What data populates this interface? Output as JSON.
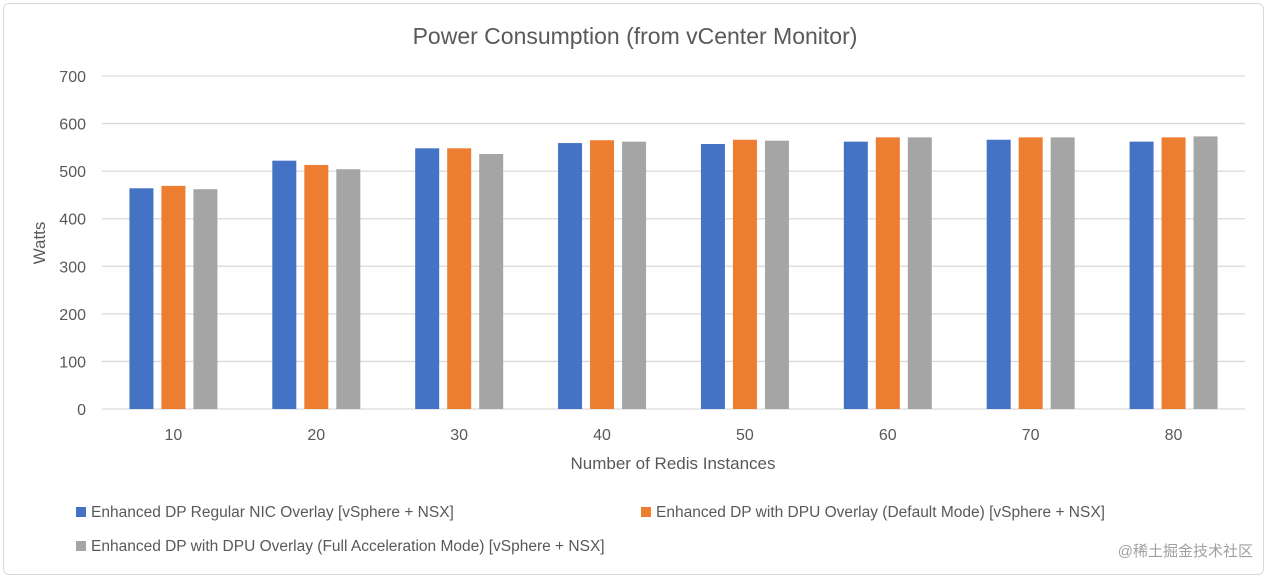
{
  "chart_data": {
    "type": "bar",
    "title": "Power Consumption (from vCenter Monitor)",
    "xlabel": "Number of Redis Instances",
    "ylabel": "Watts",
    "ylim": [
      0,
      700
    ],
    "yticks": [
      0,
      100,
      200,
      300,
      400,
      500,
      600,
      700
    ],
    "grid": true,
    "legend_position": "bottom",
    "categories": [
      "10",
      "20",
      "30",
      "40",
      "50",
      "60",
      "70",
      "80"
    ],
    "series": [
      {
        "name": "Enhanced DP Regular NIC Overlay [vSphere + NSX]",
        "color": "#4472c4",
        "values": [
          464,
          522,
          548,
          559,
          557,
          562,
          566,
          562
        ]
      },
      {
        "name": "Enhanced DP with DPU Overlay (Default Mode) [vSphere + NSX]",
        "color": "#ed7d31",
        "values": [
          469,
          513,
          548,
          565,
          566,
          571,
          571,
          571
        ]
      },
      {
        "name": "Enhanced DP with DPU Overlay (Full Acceleration Mode) [vSphere + NSX]",
        "color": "#a5a5a5",
        "values": [
          462,
          504,
          536,
          562,
          564,
          571,
          571,
          573
        ]
      }
    ]
  },
  "watermark": "@稀土掘金技术社区"
}
